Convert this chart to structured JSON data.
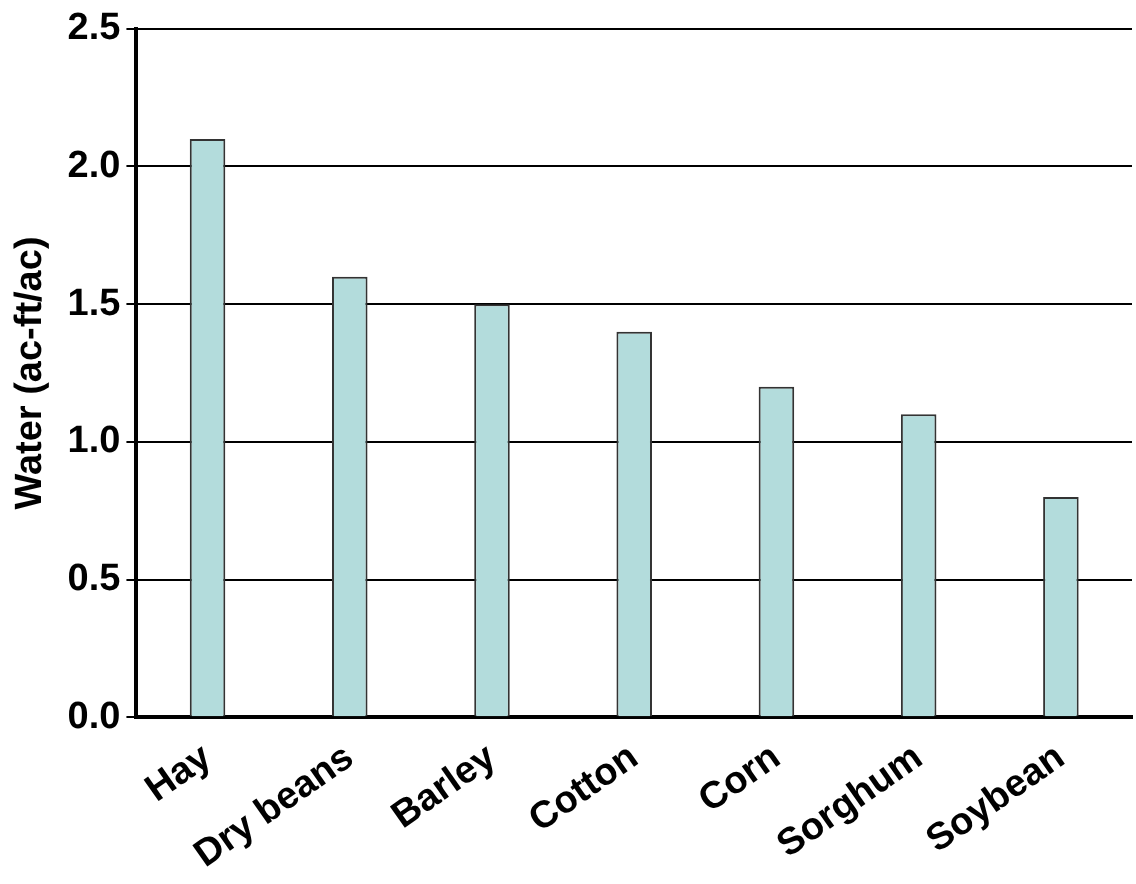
{
  "chart_data": {
    "type": "bar",
    "ylabel": "Water (ac-ft/ac)",
    "categories": [
      "Hay",
      "Dry beans",
      "Barley",
      "Cotton",
      "Corn",
      "Sorghum",
      "Soybean"
    ],
    "values": [
      2.1,
      1.6,
      1.5,
      1.4,
      1.2,
      1.1,
      0.8
    ],
    "color": "#b3dcdc",
    "ylim": [
      0,
      2.5
    ],
    "yticks": [
      {
        "value": 0,
        "label": "0.0"
      },
      {
        "value": 0.5,
        "label": "0.5"
      },
      {
        "value": 1,
        "label": "1.0"
      },
      {
        "value": 1.5,
        "label": "1.5"
      },
      {
        "value": 2,
        "label": "2.0"
      },
      {
        "value": 2.5,
        "label": "2.5"
      }
    ],
    "grid": "y"
  }
}
